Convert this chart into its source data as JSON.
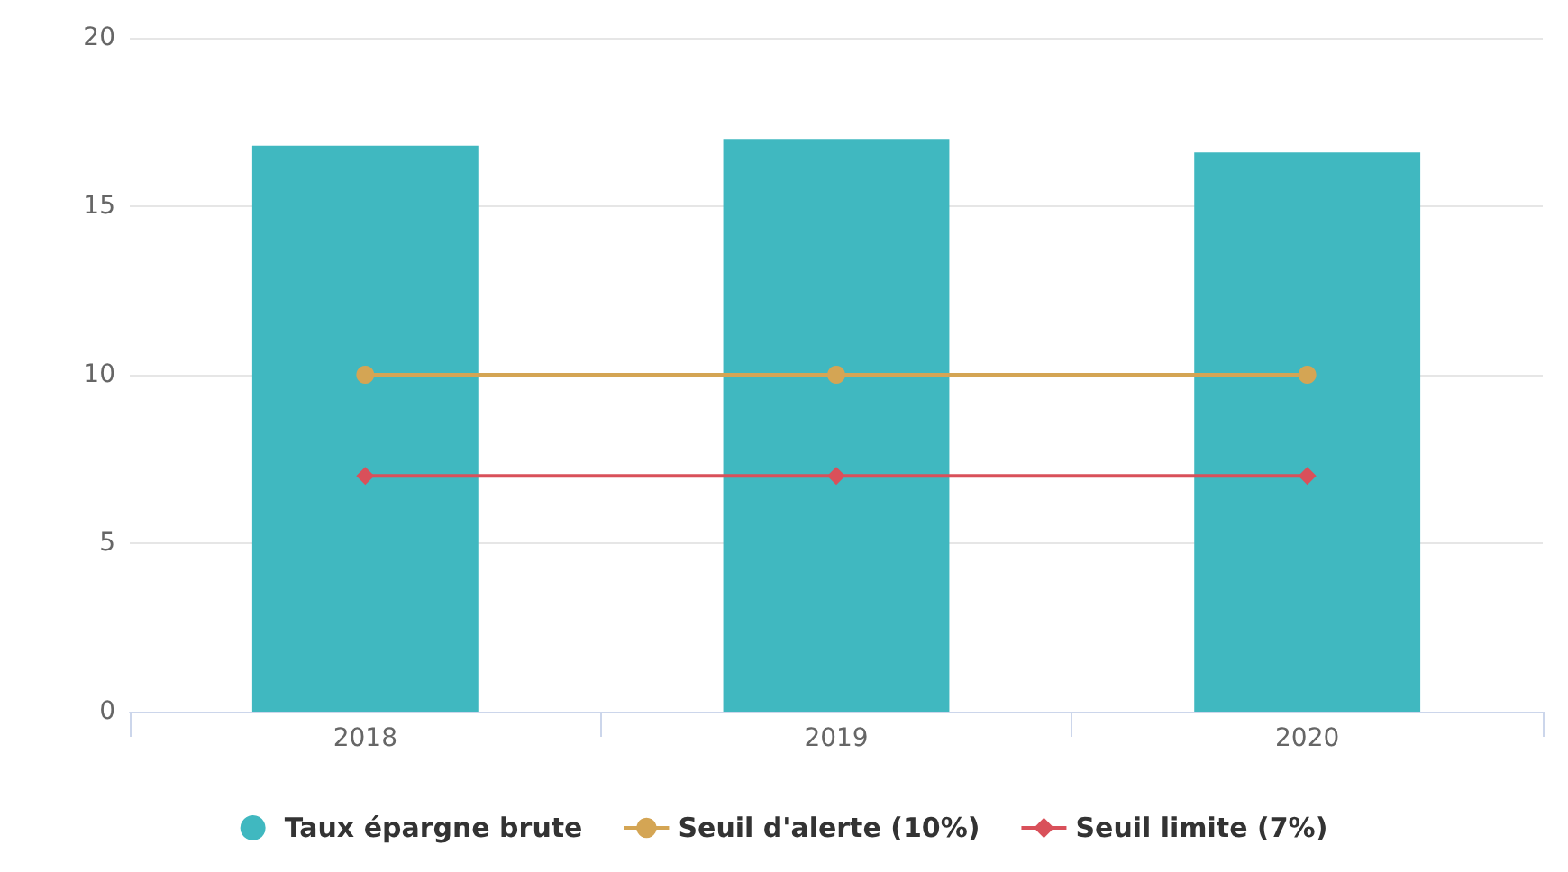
{
  "chart_data": {
    "type": "bar",
    "categories": [
      "2018",
      "2019",
      "2020"
    ],
    "series": [
      {
        "name": "Taux épargne brute",
        "color": "#40b8c0",
        "values": [
          16.8,
          17.0,
          16.6
        ]
      },
      {
        "name": "Seuil d'alerte (10%)",
        "type": "line",
        "color": "#d4a554",
        "marker": "circle",
        "values": [
          10,
          10,
          10
        ]
      },
      {
        "name": "Seuil limite (7%)",
        "type": "line",
        "color": "#d9505a",
        "marker": "diamond",
        "values": [
          7,
          7,
          7
        ]
      }
    ],
    "ylim": [
      0,
      20
    ],
    "yticks": [
      0,
      5,
      10,
      15,
      20
    ],
    "grid": "y",
    "legend": "bottom"
  }
}
